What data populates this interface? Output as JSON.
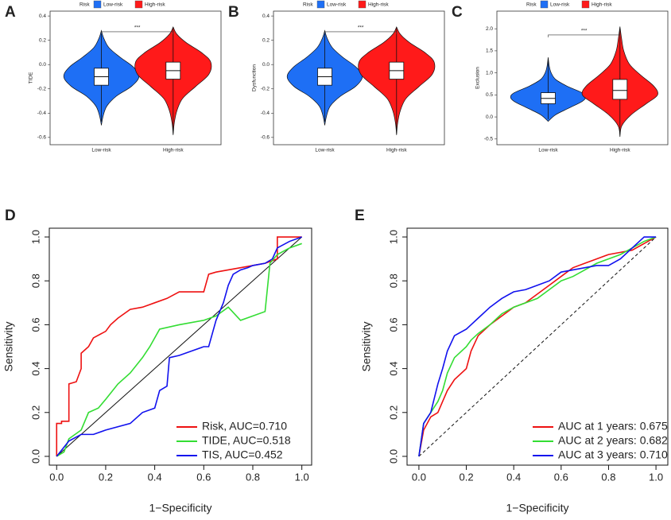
{
  "chart_data": [
    {
      "type": "violin",
      "label": "A",
      "ylabel": "TIDE",
      "legend_title": "Risk",
      "categories": [
        "Low-risk",
        "High-risk"
      ],
      "colors": [
        "#1e6ff5",
        "#ff1a1a"
      ],
      "groups": [
        {
          "y": [
            -0.5,
            -0.42,
            -0.34,
            -0.26,
            -0.18,
            -0.1,
            -0.02,
            0.06,
            0.14,
            0.22,
            0.28
          ],
          "density": [
            0,
            0.05,
            0.15,
            0.4,
            0.8,
            1,
            0.85,
            0.5,
            0.2,
            0.06,
            0
          ],
          "box": {
            "whislo": -0.47,
            "q1": -0.17,
            "median": -0.1,
            "q3": -0.03,
            "whishi": 0.25
          }
        },
        {
          "y": [
            -0.58,
            -0.48,
            -0.38,
            -0.28,
            -0.18,
            -0.08,
            0.02,
            0.1,
            0.18,
            0.25,
            0.31
          ],
          "density": [
            0,
            0.03,
            0.1,
            0.25,
            0.6,
            0.95,
            1,
            0.75,
            0.35,
            0.1,
            0
          ],
          "box": {
            "whislo": -0.57,
            "q1": -0.12,
            "median": -0.05,
            "q3": 0.02,
            "whishi": 0.3
          }
        }
      ],
      "annotation": "***",
      "annotation_y": 0.27,
      "ylim": [
        -0.66,
        0.44
      ],
      "yticks": [
        -0.6,
        -0.4,
        -0.2,
        {
          "value": 0,
          "label": "0.0"
        },
        0.2,
        0.4
      ]
    },
    {
      "type": "violin",
      "label": "B",
      "ylabel": "Dysfunction",
      "legend_title": "Risk",
      "categories": [
        "Low-risk",
        "High-risk"
      ],
      "colors": [
        "#1e6ff5",
        "#ff1a1a"
      ],
      "groups": [
        {
          "y": [
            -0.5,
            -0.42,
            -0.34,
            -0.26,
            -0.18,
            -0.1,
            -0.02,
            0.06,
            0.14,
            0.22,
            0.28
          ],
          "density": [
            0,
            0.05,
            0.15,
            0.42,
            0.82,
            1,
            0.83,
            0.48,
            0.2,
            0.06,
            0
          ],
          "box": {
            "whislo": -0.47,
            "q1": -0.17,
            "median": -0.1,
            "q3": -0.03,
            "whishi": 0.25
          }
        },
        {
          "y": [
            -0.58,
            -0.48,
            -0.38,
            -0.28,
            -0.18,
            -0.08,
            0.02,
            0.1,
            0.18,
            0.25,
            0.31
          ],
          "density": [
            0,
            0.03,
            0.1,
            0.25,
            0.6,
            0.95,
            1,
            0.75,
            0.35,
            0.1,
            0
          ],
          "box": {
            "whislo": -0.57,
            "q1": -0.12,
            "median": -0.05,
            "q3": 0.02,
            "whishi": 0.3
          }
        }
      ],
      "annotation": "***",
      "annotation_y": 0.27,
      "ylim": [
        -0.66,
        0.44
      ],
      "yticks": [
        -0.6,
        -0.4,
        -0.2,
        {
          "value": 0,
          "label": "0.0"
        },
        0.2,
        0.4
      ]
    },
    {
      "type": "violin",
      "label": "C",
      "ylabel": "Exclusion",
      "legend_title": "Risk",
      "categories": [
        "Low-risk",
        "High-risk"
      ],
      "colors": [
        "#1e6ff5",
        "#ff1a1a"
      ],
      "groups": [
        {
          "y": [
            -0.1,
            0.05,
            0.2,
            0.35,
            0.45,
            0.55,
            0.7,
            0.85,
            1.0,
            1.15,
            1.35
          ],
          "density": [
            0,
            0.2,
            0.55,
            0.9,
            1,
            0.9,
            0.5,
            0.2,
            0.08,
            0.03,
            0
          ],
          "box": {
            "whislo": -0.05,
            "q1": 0.3,
            "median": 0.42,
            "q3": 0.55,
            "whishi": 1.3
          }
        },
        {
          "y": [
            -0.45,
            -0.2,
            0.05,
            0.3,
            0.5,
            0.7,
            0.95,
            1.2,
            1.5,
            1.8,
            2.05
          ],
          "density": [
            0,
            0.05,
            0.3,
            0.7,
            1,
            0.9,
            0.55,
            0.25,
            0.1,
            0.04,
            0
          ],
          "box": {
            "whislo": -0.4,
            "q1": 0.4,
            "median": 0.6,
            "q3": 0.85,
            "whishi": 2.0
          }
        }
      ],
      "annotation": "***",
      "annotation_y": 1.86,
      "ylim": [
        -0.63,
        2.4
      ],
      "yticks": [
        -0.5,
        {
          "value": 0,
          "label": "0.0"
        },
        0.5,
        {
          "value": 1,
          "label": "1.0"
        },
        1.5,
        {
          "value": 2,
          "label": "2.0"
        }
      ]
    },
    {
      "type": "roc",
      "label": "D",
      "xlabel": "1−Specificity",
      "ylabel": "Sensitivity",
      "legend": "bottom-right",
      "diagonal": {
        "x": [
          0,
          1
        ],
        "y": [
          0,
          1
        ],
        "style": "solid"
      },
      "xlim": [
        -0.03,
        1.04
      ],
      "ylim": [
        -0.04,
        1.04
      ],
      "xticks": [
        {
          "value": 0,
          "label": "0.0"
        },
        0.2,
        0.4,
        0.6,
        0.8,
        {
          "value": 1,
          "label": "1.0"
        }
      ],
      "yticks": [
        {
          "value": 0,
          "label": "0.0"
        },
        0.2,
        0.4,
        0.6,
        0.8,
        {
          "value": 1,
          "label": "1.0"
        }
      ],
      "series": [
        {
          "name": "Risk, AUC=0.710",
          "color": "#ee1111",
          "x": [
            0,
            0,
            0.02,
            0.02,
            0.05,
            0.05,
            0.08,
            0.1,
            0.1,
            0.13,
            0.15,
            0.2,
            0.22,
            0.25,
            0.3,
            0.35,
            0.4,
            0.45,
            0.5,
            0.55,
            0.6,
            0.62,
            0.65,
            0.7,
            0.75,
            0.8,
            0.85,
            0.9,
            0.9,
            0.95,
            1
          ],
          "y": [
            0,
            0.15,
            0.15,
            0.16,
            0.16,
            0.33,
            0.34,
            0.4,
            0.47,
            0.5,
            0.54,
            0.57,
            0.6,
            0.63,
            0.67,
            0.68,
            0.7,
            0.72,
            0.75,
            0.75,
            0.75,
            0.83,
            0.84,
            0.85,
            0.86,
            0.87,
            0.88,
            0.9,
            1,
            1,
            1
          ]
        },
        {
          "name": "TIDE, AUC=0.518",
          "color": "#33dd33",
          "x": [
            0,
            0.03,
            0.05,
            0.1,
            0.13,
            0.17,
            0.2,
            0.25,
            0.3,
            0.35,
            0.38,
            0.42,
            0.5,
            0.6,
            0.65,
            0.7,
            0.75,
            0.8,
            0.85,
            0.87,
            0.9,
            0.95,
            1
          ],
          "y": [
            0,
            0.02,
            0.08,
            0.12,
            0.2,
            0.22,
            0.26,
            0.33,
            0.38,
            0.45,
            0.5,
            0.58,
            0.6,
            0.62,
            0.64,
            0.68,
            0.62,
            0.64,
            0.66,
            0.88,
            0.92,
            0.95,
            0.97
          ]
        },
        {
          "name": "TIS, AUC=0.452",
          "color": "#1111ee",
          "x": [
            0,
            0.05,
            0.1,
            0.15,
            0.2,
            0.3,
            0.35,
            0.4,
            0.42,
            0.45,
            0.46,
            0.5,
            0.55,
            0.6,
            0.62,
            0.65,
            0.68,
            0.7,
            0.72,
            0.75,
            0.78,
            0.8,
            0.85,
            0.88,
            0.9,
            0.95,
            1
          ],
          "y": [
            0,
            0.07,
            0.1,
            0.1,
            0.12,
            0.15,
            0.2,
            0.22,
            0.3,
            0.32,
            0.45,
            0.46,
            0.48,
            0.5,
            0.5,
            0.62,
            0.7,
            0.78,
            0.83,
            0.85,
            0.86,
            0.87,
            0.88,
            0.9,
            0.95,
            0.98,
            1
          ]
        }
      ]
    },
    {
      "type": "roc",
      "label": "E",
      "xlabel": "1−Specificity",
      "ylabel": "Sensitivity",
      "legend": "bottom-right",
      "diagonal": {
        "x": [
          0,
          1
        ],
        "y": [
          0,
          1
        ],
        "style": "dashed"
      },
      "xlim": [
        -0.05,
        1.05
      ],
      "ylim": [
        -0.04,
        1.04
      ],
      "xticks": [
        {
          "value": 0,
          "label": "0.0"
        },
        0.2,
        0.4,
        0.6,
        0.8,
        {
          "value": 1,
          "label": "1.0"
        }
      ],
      "yticks": [
        {
          "value": 0,
          "label": "0.0"
        },
        0.2,
        0.4,
        0.6,
        0.8,
        {
          "value": 1,
          "label": "1.0"
        }
      ],
      "series": [
        {
          "name": "AUC at 1 years: 0.675",
          "color": "#ee1111",
          "x": [
            0,
            0.02,
            0.05,
            0.08,
            0.1,
            0.12,
            0.15,
            0.2,
            0.22,
            0.25,
            0.3,
            0.35,
            0.4,
            0.45,
            0.5,
            0.55,
            0.6,
            0.65,
            0.7,
            0.75,
            0.8,
            0.85,
            0.9,
            0.95,
            1
          ],
          "y": [
            0,
            0.12,
            0.18,
            0.2,
            0.25,
            0.3,
            0.35,
            0.4,
            0.48,
            0.55,
            0.6,
            0.64,
            0.68,
            0.7,
            0.74,
            0.78,
            0.82,
            0.86,
            0.88,
            0.9,
            0.92,
            0.93,
            0.94,
            0.97,
            1
          ]
        },
        {
          "name": "AUC at 2 years: 0.682",
          "color": "#33dd33",
          "x": [
            0,
            0.02,
            0.05,
            0.08,
            0.1,
            0.12,
            0.15,
            0.2,
            0.22,
            0.25,
            0.3,
            0.35,
            0.4,
            0.45,
            0.5,
            0.55,
            0.6,
            0.65,
            0.7,
            0.75,
            0.8,
            0.85,
            0.9,
            0.95,
            1
          ],
          "y": [
            0,
            0.15,
            0.2,
            0.25,
            0.3,
            0.38,
            0.45,
            0.5,
            0.53,
            0.56,
            0.6,
            0.65,
            0.68,
            0.7,
            0.72,
            0.76,
            0.8,
            0.82,
            0.85,
            0.88,
            0.9,
            0.92,
            0.95,
            0.98,
            1
          ]
        },
        {
          "name": "AUC at 3 years: 0.710",
          "color": "#1111ee",
          "x": [
            0,
            0.02,
            0.05,
            0.08,
            0.1,
            0.12,
            0.15,
            0.2,
            0.22,
            0.25,
            0.3,
            0.35,
            0.4,
            0.45,
            0.5,
            0.55,
            0.6,
            0.65,
            0.7,
            0.75,
            0.8,
            0.85,
            0.9,
            0.95,
            1
          ],
          "y": [
            0,
            0.15,
            0.2,
            0.33,
            0.4,
            0.48,
            0.55,
            0.58,
            0.6,
            0.63,
            0.68,
            0.72,
            0.75,
            0.76,
            0.78,
            0.8,
            0.84,
            0.85,
            0.86,
            0.87,
            0.87,
            0.9,
            0.95,
            1,
            1
          ]
        }
      ]
    }
  ]
}
